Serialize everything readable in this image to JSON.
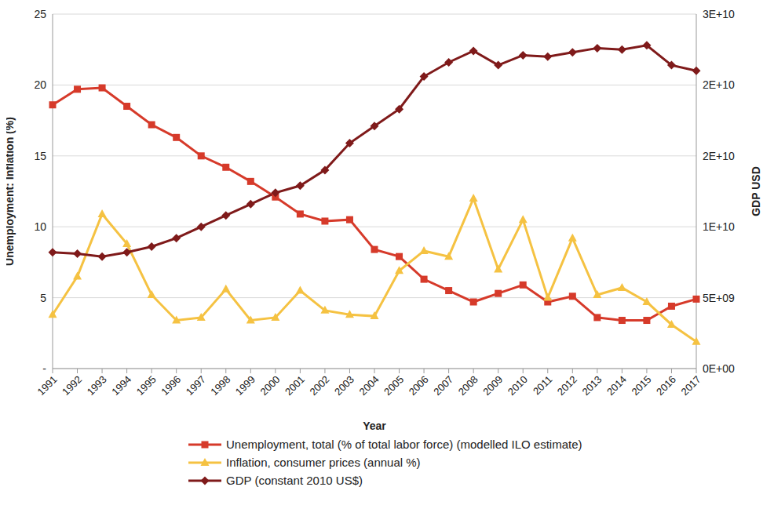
{
  "chart_data": {
    "type": "line",
    "x_label": "Year",
    "y_label": "Unemployment: Inflation (%)",
    "y2_label": "GDP USD",
    "categories": [
      "1991",
      "1992",
      "1993",
      "1994",
      "1995",
      "1996",
      "1997",
      "1998",
      "1999",
      "2000",
      "2001",
      "2002",
      "2003",
      "2004",
      "2005",
      "2006",
      "2007",
      "2008",
      "2009",
      "2010",
      "2011",
      "2012",
      "2013",
      "2014",
      "2015",
      "2016",
      "2017"
    ],
    "ylim": [
      0,
      25
    ],
    "yticks": [
      {
        "value": 0,
        "label": "-"
      },
      5,
      10,
      15,
      20,
      25
    ],
    "y2lim": [
      0,
      25000000000
    ],
    "y2ticks": [
      {
        "value": 0,
        "label": "0E+00"
      },
      {
        "value": 5000000000,
        "label": "5E+09"
      },
      {
        "value": 10000000000,
        "label": "1E+10"
      },
      {
        "value": 15000000000,
        "label": "2E+10"
      },
      {
        "value": 20000000000,
        "label": "2E+10"
      },
      {
        "value": 25000000000,
        "label": "3E+10"
      }
    ],
    "grid": true,
    "legend": "bottom",
    "series": [
      {
        "name": "Unemployment, total (% of total labor force) (modelled ILO estimate)",
        "color": "#d63a2a",
        "marker": "square",
        "values": [
          18.6,
          19.7,
          19.8,
          18.5,
          17.2,
          16.3,
          15.0,
          14.2,
          13.2,
          12.1,
          10.9,
          10.4,
          10.5,
          8.4,
          7.9,
          6.3,
          5.5,
          4.7,
          5.3,
          5.9,
          4.7,
          5.1,
          3.6,
          3.4,
          3.4,
          4.4,
          4.9
        ]
      },
      {
        "name": "Inflation, consumer prices (annual %)",
        "color": "#f5c242",
        "marker": "triangle",
        "values": [
          3.8,
          6.5,
          10.9,
          8.8,
          5.2,
          3.4,
          3.6,
          5.6,
          3.4,
          3.6,
          5.5,
          4.1,
          3.8,
          3.7,
          6.9,
          8.3,
          7.9,
          12.0,
          7.0,
          10.5,
          5.0,
          9.2,
          5.2,
          5.7,
          4.7,
          3.1,
          1.9
        ]
      },
      {
        "name": "GDP (constant 2010 US$)",
        "color": "#7f1a1a",
        "marker": "diamond",
        "axis": "y2",
        "values": [
          8200000000,
          8100000000,
          7900000000,
          8200000000,
          8600000000,
          9200000000,
          10000000000,
          10800000000,
          11600000000,
          12400000000,
          12900000000,
          14000000000,
          15900000000,
          17100000000,
          18300000000,
          20600000000,
          21600000000,
          22400000000,
          21400000000,
          22100000000,
          22000000000,
          22300000000,
          22600000000,
          22500000000,
          22800000000,
          21400000000,
          21000000000
        ]
      }
    ]
  }
}
